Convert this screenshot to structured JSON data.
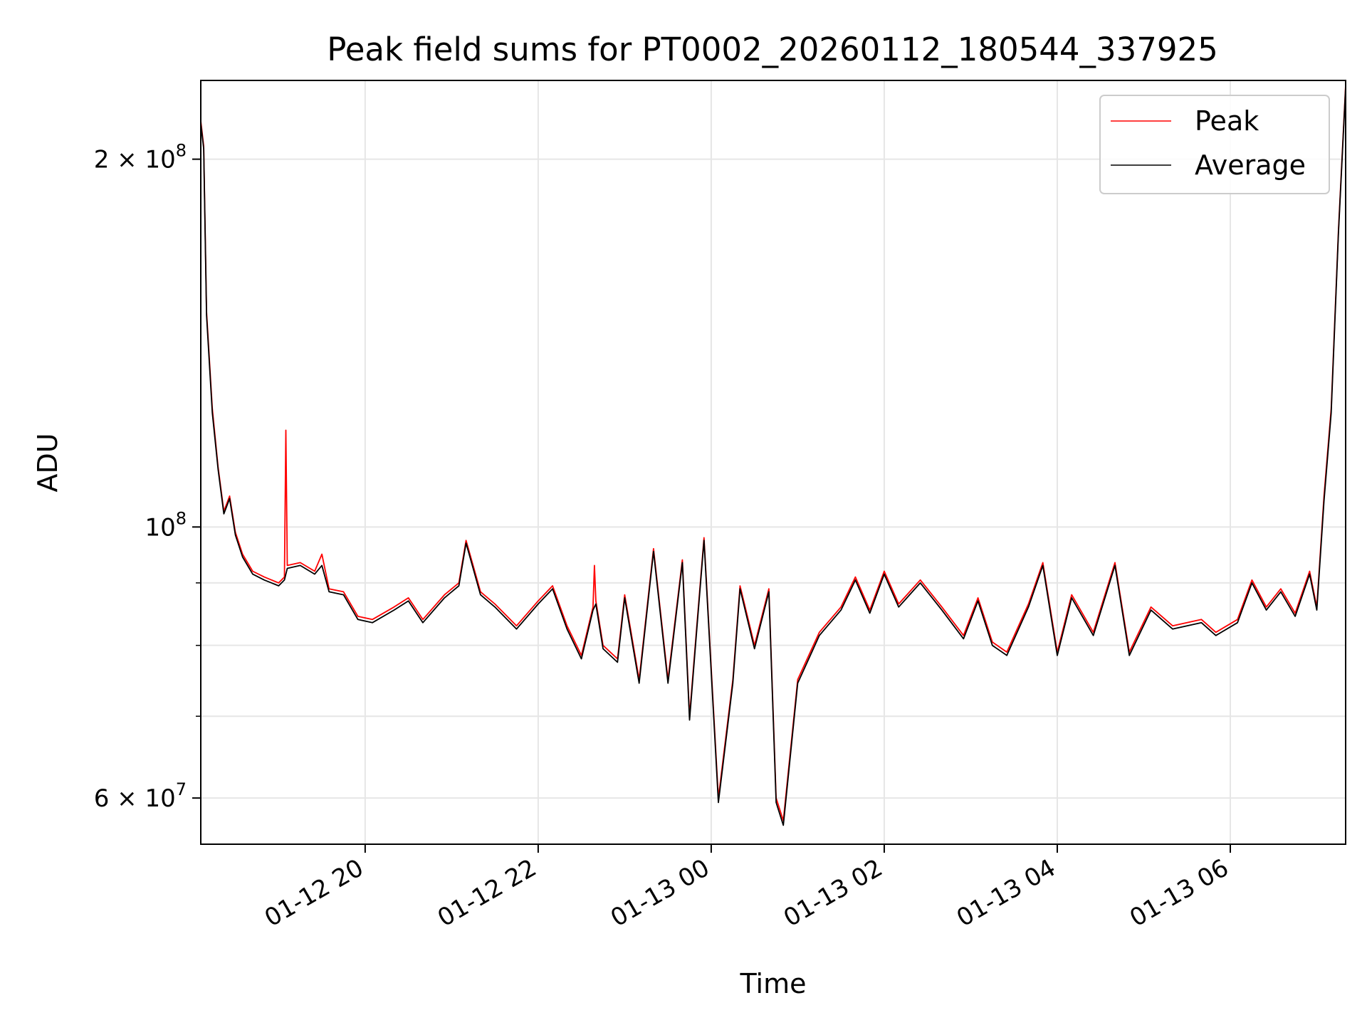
{
  "chart_data": {
    "type": "line",
    "title": "Peak field sums for PT0002_20260112_180544_337925",
    "xlabel": "Time",
    "ylabel": "ADU",
    "x_axis": {
      "kind": "time",
      "range": [
        "2026-01-12 18:06",
        "2026-01-13 07:20"
      ],
      "ticks": [
        {
          "t": "2026-01-12 20:00",
          "label": "01-12 20"
        },
        {
          "t": "2026-01-12 22:00",
          "label": "01-12 22"
        },
        {
          "t": "2026-01-13 00:00",
          "label": "01-13 00"
        },
        {
          "t": "2026-01-13 02:00",
          "label": "01-13 02"
        },
        {
          "t": "2026-01-13 04:00",
          "label": "01-13 04"
        },
        {
          "t": "2026-01-13 06:00",
          "label": "01-13 06"
        }
      ]
    },
    "y_axis": {
      "scale": "log",
      "range": [
        55000000,
        232000000
      ],
      "major_ticks": [
        {
          "value": 60000000,
          "mantissa": "6",
          "exponent": "7"
        },
        {
          "value": 100000000,
          "mantissa": "",
          "exponent": "8"
        },
        {
          "value": 200000000,
          "mantissa": "2",
          "exponent": "8"
        }
      ],
      "minor_gridlines": [
        70000000,
        80000000,
        90000000
      ]
    },
    "grid": true,
    "legend": {
      "position": "top-right",
      "entries": [
        {
          "name": "Peak",
          "color": "#ff0000"
        },
        {
          "name": "Average",
          "color": "#000000"
        }
      ]
    },
    "series": [
      {
        "name": "Peak",
        "color": "#ff0000",
        "points": [
          [
            "2026-01-12 18:06",
            215000000
          ],
          [
            "2026-01-12 18:08",
            205000000
          ],
          [
            "2026-01-12 18:10",
            150000000
          ],
          [
            "2026-01-12 18:14",
            125000000
          ],
          [
            "2026-01-12 18:18",
            112000000
          ],
          [
            "2026-01-12 18:22",
            103000000
          ],
          [
            "2026-01-12 18:26",
            106000000
          ],
          [
            "2026-01-12 18:30",
            99000000
          ],
          [
            "2026-01-12 18:35",
            95000000
          ],
          [
            "2026-01-12 18:42",
            92000000
          ],
          [
            "2026-01-12 18:50",
            91000000
          ],
          [
            "2026-01-12 19:00",
            90000000
          ],
          [
            "2026-01-12 19:04",
            91000000
          ],
          [
            "2026-01-12 19:05",
            120000000
          ],
          [
            "2026-01-12 19:06",
            93000000
          ],
          [
            "2026-01-12 19:15",
            93500000
          ],
          [
            "2026-01-12 19:25",
            92000000
          ],
          [
            "2026-01-12 19:30",
            95000000
          ],
          [
            "2026-01-12 19:35",
            89000000
          ],
          [
            "2026-01-12 19:45",
            88500000
          ],
          [
            "2026-01-12 19:55",
            84500000
          ],
          [
            "2026-01-12 20:05",
            84000000
          ],
          [
            "2026-01-12 20:20",
            86000000
          ],
          [
            "2026-01-12 20:30",
            87500000
          ],
          [
            "2026-01-12 20:40",
            84000000
          ],
          [
            "2026-01-12 20:55",
            88000000
          ],
          [
            "2026-01-12 21:05",
            90000000
          ],
          [
            "2026-01-12 21:10",
            97500000
          ],
          [
            "2026-01-12 21:20",
            88500000
          ],
          [
            "2026-01-12 21:30",
            86500000
          ],
          [
            "2026-01-12 21:45",
            83000000
          ],
          [
            "2026-01-12 22:00",
            87000000
          ],
          [
            "2026-01-12 22:10",
            89500000
          ],
          [
            "2026-01-12 22:20",
            83000000
          ],
          [
            "2026-01-12 22:30",
            78500000
          ],
          [
            "2026-01-12 22:38",
            86000000
          ],
          [
            "2026-01-12 22:39",
            93000000
          ],
          [
            "2026-01-12 22:40",
            87000000
          ],
          [
            "2026-01-12 22:45",
            80000000
          ],
          [
            "2026-01-12 22:55",
            78000000
          ],
          [
            "2026-01-12 23:00",
            88000000
          ],
          [
            "2026-01-12 23:10",
            75000000
          ],
          [
            "2026-01-12 23:20",
            96000000
          ],
          [
            "2026-01-12 23:30",
            75000000
          ],
          [
            "2026-01-12 23:40",
            94000000
          ],
          [
            "2026-01-12 23:45",
            70000000
          ],
          [
            "2026-01-12 23:50",
            83000000
          ],
          [
            "2026-01-12 23:55",
            98000000
          ],
          [
            "2026-01-13 00:05",
            60000000
          ],
          [
            "2026-01-13 00:15",
            75000000
          ],
          [
            "2026-01-13 00:20",
            89500000
          ],
          [
            "2026-01-13 00:30",
            80000000
          ],
          [
            "2026-01-13 00:40",
            89000000
          ],
          [
            "2026-01-13 00:45",
            60000000
          ],
          [
            "2026-01-13 00:50",
            57500000
          ],
          [
            "2026-01-13 01:00",
            75000000
          ],
          [
            "2026-01-13 01:15",
            82000000
          ],
          [
            "2026-01-13 01:30",
            86000000
          ],
          [
            "2026-01-13 01:40",
            91000000
          ],
          [
            "2026-01-13 01:50",
            85500000
          ],
          [
            "2026-01-13 02:00",
            92000000
          ],
          [
            "2026-01-13 02:10",
            86500000
          ],
          [
            "2026-01-13 02:25",
            90500000
          ],
          [
            "2026-01-13 02:40",
            86000000
          ],
          [
            "2026-01-13 02:55",
            81500000
          ],
          [
            "2026-01-13 03:05",
            87500000
          ],
          [
            "2026-01-13 03:15",
            80500000
          ],
          [
            "2026-01-13 03:25",
            79000000
          ],
          [
            "2026-01-13 03:40",
            86500000
          ],
          [
            "2026-01-13 03:50",
            93500000
          ],
          [
            "2026-01-13 04:00",
            79000000
          ],
          [
            "2026-01-13 04:10",
            88000000
          ],
          [
            "2026-01-13 04:25",
            82000000
          ],
          [
            "2026-01-13 04:40",
            93500000
          ],
          [
            "2026-01-13 04:50",
            79000000
          ],
          [
            "2026-01-13 05:05",
            86000000
          ],
          [
            "2026-01-13 05:20",
            83000000
          ],
          [
            "2026-01-13 05:40",
            84000000
          ],
          [
            "2026-01-13 05:50",
            82000000
          ],
          [
            "2026-01-13 06:05",
            84000000
          ],
          [
            "2026-01-13 06:15",
            90500000
          ],
          [
            "2026-01-13 06:25",
            86000000
          ],
          [
            "2026-01-13 06:35",
            89000000
          ],
          [
            "2026-01-13 06:45",
            85000000
          ],
          [
            "2026-01-13 06:55",
            92000000
          ],
          [
            "2026-01-13 07:00",
            86000000
          ],
          [
            "2026-01-13 07:05",
            106000000
          ],
          [
            "2026-01-13 07:10",
            125000000
          ],
          [
            "2026-01-13 07:15",
            175000000
          ],
          [
            "2026-01-13 07:20",
            230000000
          ]
        ]
      },
      {
        "name": "Average",
        "color": "#000000",
        "points": [
          [
            "2026-01-12 18:06",
            214000000
          ],
          [
            "2026-01-12 18:08",
            204000000
          ],
          [
            "2026-01-12 18:10",
            149000000
          ],
          [
            "2026-01-12 18:14",
            124000000
          ],
          [
            "2026-01-12 18:18",
            111500000
          ],
          [
            "2026-01-12 18:22",
            102500000
          ],
          [
            "2026-01-12 18:26",
            105500000
          ],
          [
            "2026-01-12 18:30",
            98500000
          ],
          [
            "2026-01-12 18:35",
            94500000
          ],
          [
            "2026-01-12 18:42",
            91500000
          ],
          [
            "2026-01-12 18:50",
            90500000
          ],
          [
            "2026-01-12 19:00",
            89500000
          ],
          [
            "2026-01-12 19:04",
            90500000
          ],
          [
            "2026-01-12 19:06",
            92500000
          ],
          [
            "2026-01-12 19:15",
            93000000
          ],
          [
            "2026-01-12 19:25",
            91500000
          ],
          [
            "2026-01-12 19:30",
            93000000
          ],
          [
            "2026-01-12 19:35",
            88500000
          ],
          [
            "2026-01-12 19:45",
            88000000
          ],
          [
            "2026-01-12 19:55",
            84000000
          ],
          [
            "2026-01-12 20:05",
            83500000
          ],
          [
            "2026-01-12 20:20",
            85500000
          ],
          [
            "2026-01-12 20:30",
            87000000
          ],
          [
            "2026-01-12 20:40",
            83500000
          ],
          [
            "2026-01-12 20:55",
            87500000
          ],
          [
            "2026-01-12 21:05",
            89500000
          ],
          [
            "2026-01-12 21:10",
            97000000
          ],
          [
            "2026-01-12 21:20",
            88000000
          ],
          [
            "2026-01-12 21:30",
            86000000
          ],
          [
            "2026-01-12 21:45",
            82500000
          ],
          [
            "2026-01-12 22:00",
            86500000
          ],
          [
            "2026-01-12 22:10",
            89000000
          ],
          [
            "2026-01-12 22:20",
            82500000
          ],
          [
            "2026-01-12 22:30",
            78000000
          ],
          [
            "2026-01-12 22:38",
            85500000
          ],
          [
            "2026-01-12 22:40",
            86500000
          ],
          [
            "2026-01-12 22:45",
            79500000
          ],
          [
            "2026-01-12 22:55",
            77500000
          ],
          [
            "2026-01-12 23:00",
            87500000
          ],
          [
            "2026-01-12 23:10",
            74500000
          ],
          [
            "2026-01-12 23:20",
            95500000
          ],
          [
            "2026-01-12 23:30",
            74500000
          ],
          [
            "2026-01-12 23:40",
            93500000
          ],
          [
            "2026-01-12 23:45",
            69500000
          ],
          [
            "2026-01-12 23:50",
            82500000
          ],
          [
            "2026-01-12 23:55",
            97500000
          ],
          [
            "2026-01-13 00:05",
            59500000
          ],
          [
            "2026-01-13 00:15",
            74500000
          ],
          [
            "2026-01-13 00:20",
            89000000
          ],
          [
            "2026-01-13 00:30",
            79500000
          ],
          [
            "2026-01-13 00:40",
            88500000
          ],
          [
            "2026-01-13 00:45",
            59500000
          ],
          [
            "2026-01-13 00:50",
            57000000
          ],
          [
            "2026-01-13 01:00",
            74500000
          ],
          [
            "2026-01-13 01:15",
            81500000
          ],
          [
            "2026-01-13 01:30",
            85500000
          ],
          [
            "2026-01-13 01:40",
            90500000
          ],
          [
            "2026-01-13 01:50",
            85000000
          ],
          [
            "2026-01-13 02:00",
            91500000
          ],
          [
            "2026-01-13 02:10",
            86000000
          ],
          [
            "2026-01-13 02:25",
            90000000
          ],
          [
            "2026-01-13 02:40",
            85500000
          ],
          [
            "2026-01-13 02:55",
            81000000
          ],
          [
            "2026-01-13 03:05",
            87000000
          ],
          [
            "2026-01-13 03:15",
            80000000
          ],
          [
            "2026-01-13 03:25",
            78500000
          ],
          [
            "2026-01-13 03:40",
            86000000
          ],
          [
            "2026-01-13 03:50",
            93000000
          ],
          [
            "2026-01-13 04:00",
            78500000
          ],
          [
            "2026-01-13 04:10",
            87500000
          ],
          [
            "2026-01-13 04:25",
            81500000
          ],
          [
            "2026-01-13 04:40",
            93000000
          ],
          [
            "2026-01-13 04:50",
            78500000
          ],
          [
            "2026-01-13 05:05",
            85500000
          ],
          [
            "2026-01-13 05:20",
            82500000
          ],
          [
            "2026-01-13 05:40",
            83500000
          ],
          [
            "2026-01-13 05:50",
            81500000
          ],
          [
            "2026-01-13 06:05",
            83500000
          ],
          [
            "2026-01-13 06:15",
            90000000
          ],
          [
            "2026-01-13 06:25",
            85500000
          ],
          [
            "2026-01-13 06:35",
            88500000
          ],
          [
            "2026-01-13 06:45",
            84500000
          ],
          [
            "2026-01-13 06:55",
            91500000
          ],
          [
            "2026-01-13 07:00",
            85500000
          ],
          [
            "2026-01-13 07:05",
            105000000
          ],
          [
            "2026-01-13 07:10",
            124000000
          ],
          [
            "2026-01-13 07:15",
            174000000
          ],
          [
            "2026-01-13 07:20",
            229000000
          ]
        ]
      }
    ]
  }
}
